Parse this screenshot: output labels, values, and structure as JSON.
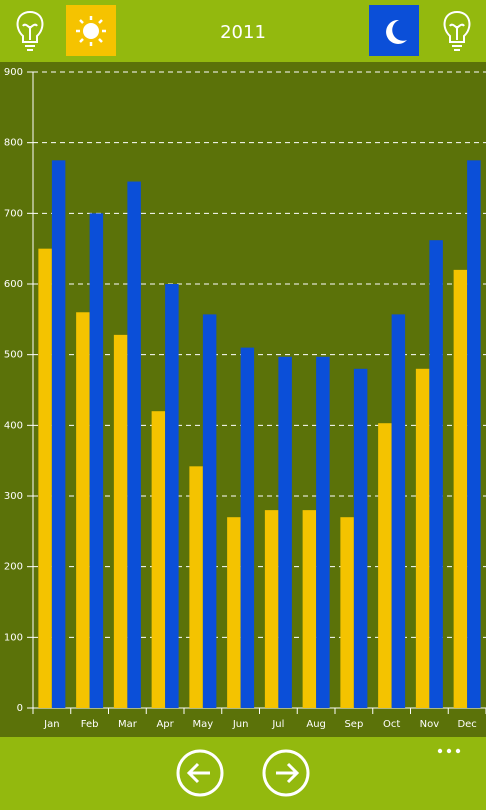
{
  "header": {
    "title": "2011"
  },
  "chart_data": {
    "type": "bar",
    "categories": [
      "Jan",
      "Feb",
      "Mar",
      "Apr",
      "May",
      "Jun",
      "Jul",
      "Aug",
      "Sep",
      "Oct",
      "Nov",
      "Dec"
    ],
    "series": [
      {
        "color": "#f4c300",
        "values": [
          650,
          560,
          528,
          420,
          342,
          270,
          280,
          280,
          270,
          403,
          480,
          620
        ]
      },
      {
        "color": "#0b4fd8",
        "values": [
          775,
          700,
          745,
          600,
          557,
          510,
          497,
          497,
          480,
          557,
          662,
          775
        ]
      }
    ],
    "ylim": [
      0,
      900
    ],
    "yticks": [
      0,
      100,
      200,
      300,
      400,
      500,
      600,
      700,
      800,
      900
    ],
    "grid": true
  }
}
